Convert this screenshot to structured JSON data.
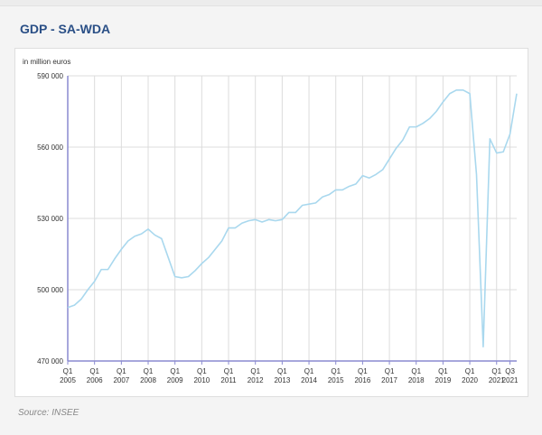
{
  "title": "GDP - SA-WDA",
  "source": "Source: INSEE",
  "colors": {
    "line": "#a9d8ee",
    "axis": "#8a8ad0",
    "grid": "#dcdcdc",
    "title": "#2a4f86"
  },
  "chart_data": {
    "type": "line",
    "title": "GDP - SA-WDA",
    "ylabel": "in million euros",
    "xlabel": "",
    "ylim": [
      470000,
      590000
    ],
    "y_ticks": [
      470000,
      500000,
      530000,
      560000,
      590000
    ],
    "y_tick_labels": [
      "470 000",
      "500 000",
      "530 000",
      "560 000",
      "590 000"
    ],
    "x_ticks": [
      {
        "q1": "Q1",
        "q2": "2005",
        "index": 0
      },
      {
        "q1": "Q1",
        "q2": "2006",
        "index": 4
      },
      {
        "q1": "Q1",
        "q2": "2007",
        "index": 8
      },
      {
        "q1": "Q1",
        "q2": "2008",
        "index": 12
      },
      {
        "q1": "Q1",
        "q2": "2009",
        "index": 16
      },
      {
        "q1": "Q1",
        "q2": "2010",
        "index": 20
      },
      {
        "q1": "Q1",
        "q2": "2011",
        "index": 24
      },
      {
        "q1": "Q1",
        "q2": "2012",
        "index": 28
      },
      {
        "q1": "Q1",
        "q2": "2013",
        "index": 32
      },
      {
        "q1": "Q1",
        "q2": "2014",
        "index": 36
      },
      {
        "q1": "Q1",
        "q2": "2015",
        "index": 40
      },
      {
        "q1": "Q1",
        "q2": "2016",
        "index": 44
      },
      {
        "q1": "Q1",
        "q2": "2017",
        "index": 48
      },
      {
        "q1": "Q1",
        "q2": "2018",
        "index": 52
      },
      {
        "q1": "Q1",
        "q2": "2019",
        "index": 56
      },
      {
        "q1": "Q1",
        "q2": "2020",
        "index": 60
      },
      {
        "q1": "Q1",
        "q2": "2021",
        "index": 64
      },
      {
        "q1": "Q3",
        "q2": "2021",
        "index": 66
      }
    ],
    "grid": true,
    "series": [
      {
        "name": "GDP",
        "start": "2005-Q1",
        "frequency": "quarterly",
        "values": [
          492500,
          493500,
          496000,
          500000,
          503500,
          508500,
          508500,
          513000,
          517000,
          520500,
          522500,
          523500,
          525500,
          523000,
          521500,
          513500,
          505500,
          505000,
          505500,
          508000,
          511000,
          513500,
          517000,
          520500,
          526000,
          526000,
          528000,
          529000,
          529500,
          528500,
          529500,
          529000,
          529500,
          532500,
          532500,
          535500,
          536000,
          536500,
          539000,
          540000,
          542000,
          542000,
          543500,
          544500,
          548000,
          547000,
          548500,
          550500,
          555000,
          559500,
          563000,
          568500,
          568500,
          570000,
          572000,
          575000,
          579000,
          582500,
          584000,
          584000,
          582500,
          548500,
          476000,
          563500,
          557500,
          558000,
          565500,
          582500
        ]
      }
    ]
  }
}
